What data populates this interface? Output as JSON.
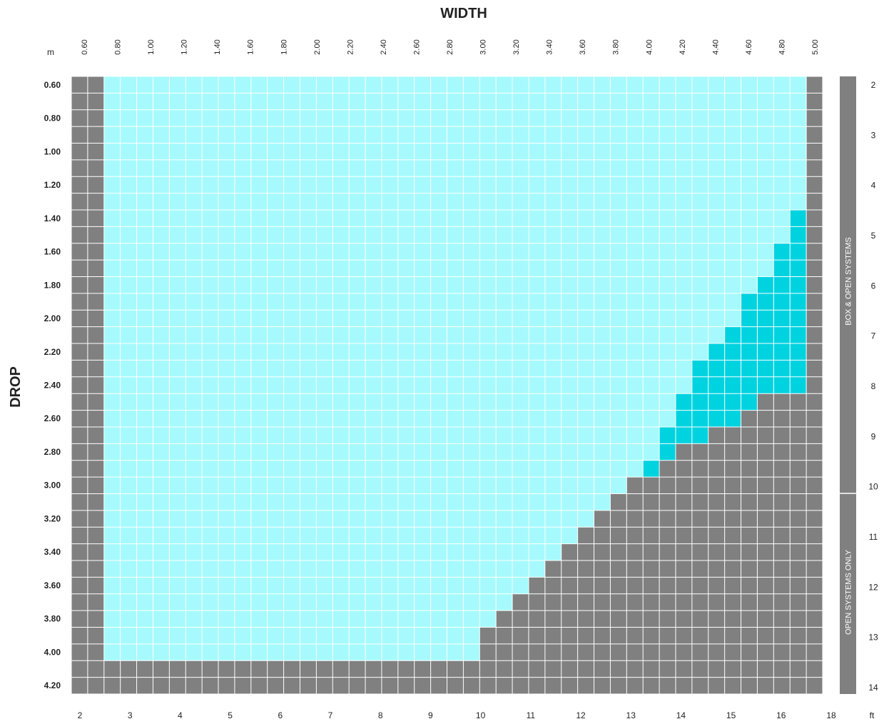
{
  "chart_data": {
    "type": "heatmap",
    "title": "WIDTH",
    "xlabel": "WIDTH",
    "ylabel": "DROP",
    "metric_unit": "m",
    "imperial_unit": "ft",
    "width_ticks_m": [
      "0.60",
      "0.80",
      "1.00",
      "1.20",
      "1.40",
      "1.60",
      "1.80",
      "2.00",
      "2.20",
      "2.40",
      "2.60",
      "2.80",
      "3.00",
      "3.20",
      "3.40",
      "3.60",
      "3.80",
      "4.00",
      "4.20",
      "4.40",
      "4.60",
      "4.80",
      "5.00"
    ],
    "drop_ticks_m": [
      "0.60",
      "0.80",
      "1.00",
      "1.20",
      "1.40",
      "1.60",
      "1.80",
      "2.00",
      "2.20",
      "2.40",
      "2.60",
      "2.80",
      "3.00",
      "3.20",
      "3.40",
      "3.60",
      "3.80",
      "4.00",
      "4.20"
    ],
    "width_ticks_ft": [
      "2",
      "3",
      "4",
      "5",
      "6",
      "7",
      "8",
      "9",
      "10",
      "11",
      "12",
      "13",
      "14",
      "15",
      "16",
      "18"
    ],
    "drop_ticks_ft": [
      "2",
      "3",
      "4",
      "5",
      "6",
      "7",
      "8",
      "9",
      "10",
      "11",
      "12",
      "13",
      "14"
    ],
    "side_labels": [
      "BOX & OPEN SYSTEMS",
      "OPEN SYSTEMS ONLY"
    ],
    "legend": {
      "available": {
        "color": "#a6fafd"
      },
      "open_systems_only": {
        "color": "#00d3e0"
      },
      "not_available": {
        "color": "#808080"
      }
    },
    "grid": true,
    "rows_note": "rows listed top to bottom in drop steps of 0.10 m from 0.60 to 4.20; columns listed left to right in width steps of 0.10 m from 0.60 to 5.00",
    "rows": [
      "XXAAAAAAAAAAAAAAAAAAAAAAAAAAAAAAAAAAAAAAAAAAAX",
      "XXAAAAAAAAAAAAAAAAAAAAAAAAAAAAAAAAAAAAAAAAAAAX",
      "XXAAAAAAAAAAAAAAAAAAAAAAAAAAAAAAAAAAAAAAAAAAAX",
      "XXAAAAAAAAAAAAAAAAAAAAAAAAAAAAAAAAAAAAAAAAAAAX",
      "XXAAAAAAAAAAAAAAAAAAAAAAAAAAAAAAAAAAAAAAAAAAAX",
      "XXAAAAAAAAAAAAAAAAAAAAAAAAAAAAAAAAAAAAAAAAAAAX",
      "XXAAAAAAAAAAAAAAAAAAAAAAAAAAAAAAAAAAAAAAAAAAAX",
      "XXAAAAAAAAAAAAAAAAAAAAAAAAAAAAAAAAAAAAAAAAAAAX",
      "XXAAAAAAAAAAAAAAAAAAAAAAAAAAAAAAAAAAAAAAAAAABX",
      "XXAAAAAAAAAAAAAAAAAAAAAAAAAAAAAAAAAAAAAAAAAABX",
      "XXAAAAAAAAAAAAAAAAAAAAAAAAAAAAAAAAAAAAAAAAABBX",
      "XXAAAAAAAAAAAAAAAAAAAAAAAAAAAAAAAAAAAAAAAAABBX",
      "XXAAAAAAAAAAAAAAAAAAAAAAAAAAAAAAAAAAAAAAAABBBX",
      "XXAAAAAAAAAAAAAAAAAAAAAAAAAAAAAAAAAAAAAAABBBBX",
      "XXAAAAAAAAAAAAAAAAAAAAAAAAAAAAAAAAAAAAAAABBBBX",
      "XXAAAAAAAAAAAAAAAAAAAAAAAAAAAAAAAAAAAAAABBBBBX",
      "XXAAAAAAAAAAAAAAAAAAAAAAAAAAAAAAAAAAAAABBBBBBX",
      "XXAAAAAAAAAAAAAAAAAAAAAAAAAAAAAAAAAAAABBBBBBBX",
      "XXAAAAAAAAAAAAAAAAAAAAAAAAAAAAAAAAAAAABBBBBBBX",
      "XXAAAAAAAAAAAAAAAAAAAAAAAAAAAAAAAAAAABBBBBXXXX",
      "XXAAAAAAAAAAAAAAAAAAAAAAAAAAAAAAAAAAABBBBXXXXX",
      "XXAAAAAAAAAAAAAAAAAAAAAAAAAAAAAAAAAABBBXXXXXXX",
      "XXAAAAAAAAAAAAAAAAAAAAAAAAAAAAAAAAAABXXXXXXXXX",
      "XXAAAAAAAAAAAAAAAAAAAAAAAAAAAAAAAAABXXXXXXXXXX",
      "XXAAAAAAAAAAAAAAAAAAAAAAAAAAAAAAAAXXXXXXXXXXXX",
      "XXAAAAAAAAAAAAAAAAAAAAAAAAAAAAAAAXXXXXXXXXXXXX",
      "XXAAAAAAAAAAAAAAAAAAAAAAAAAAAAAAXXXXXXXXXXXXXX",
      "XXAAAAAAAAAAAAAAAAAAAAAAAAAAAAAXXXXXXXXXXXXXXX",
      "XXAAAAAAAAAAAAAAAAAAAAAAAAAAAAXXXXXXXXXXXXXXXX",
      "XXAAAAAAAAAAAAAAAAAAAAAAAAAAAXXXXXXXXXXXXXXXXX",
      "XXAAAAAAAAAAAAAAAAAAAAAAAAAAXXXXXXXXXXXXXXXXXX",
      "XXAAAAAAAAAAAAAAAAAAAAAAAAAXXXXXXXXXXXXXXXXXXX",
      "XXAAAAAAAAAAAAAAAAAAAAAAAAXXXXXXXXXXXXXXXXXXXX",
      "XXAAAAAAAAAAAAAAAAAAAAAAAXXXXXXXXXXXXXXXXXXXXX",
      "XXAAAAAAAAAAAAAAAAAAAAAAAXXXXXXXXXXXXXXXXXXXXX",
      "XXXXXXXXXXXXXXXXXXXXXXXXXXXXXXXXXXXXXXXXXXXXXX",
      "XXXXXXXXXXXXXXXXXXXXXXXXXXXXXXXXXXXXXXXXXXXXXX"
    ]
  }
}
